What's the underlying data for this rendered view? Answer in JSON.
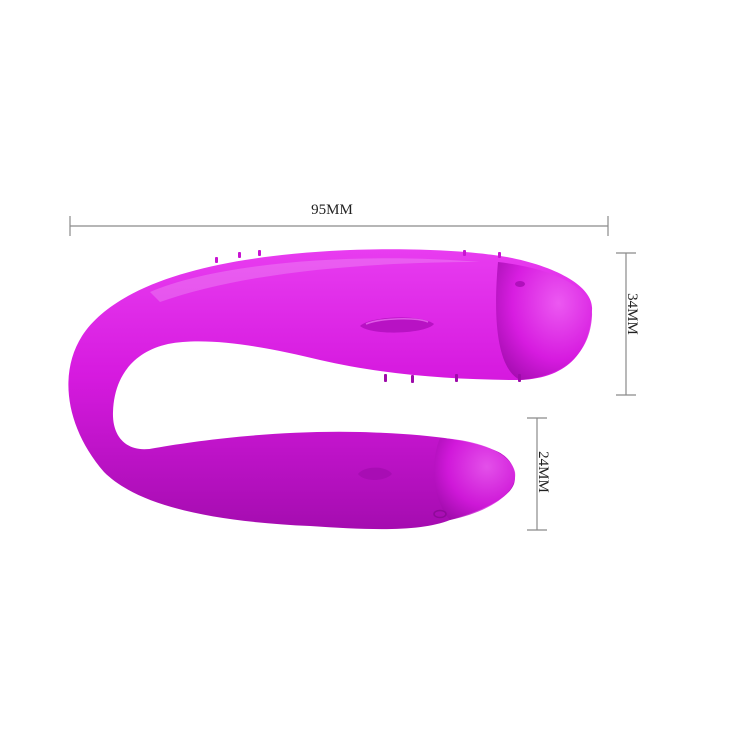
{
  "dimensions": {
    "width_label": "95MM",
    "height_upper_label": "34MM",
    "height_lower_label": "24MM"
  },
  "colors": {
    "product": "#d61adf",
    "product_highlight": "#f0a0f5",
    "product_shadow": "#a50cb0",
    "dimension_line": "#8a8a8a",
    "text": "#222222"
  }
}
